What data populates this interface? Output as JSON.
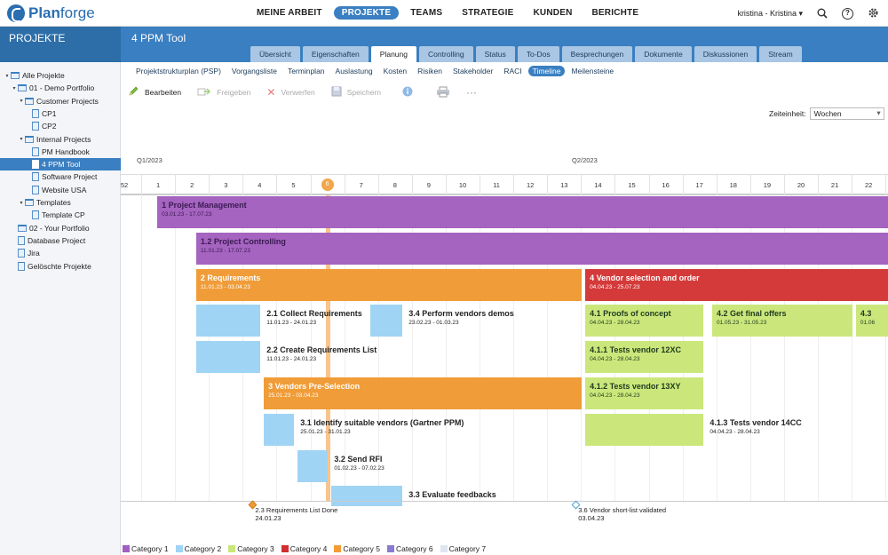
{
  "topnav": {
    "brand_a": "Plan",
    "brand_b": "forge",
    "items": [
      "MEINE ARBEIT",
      "PROJEKTE",
      "TEAMS",
      "STRATEGIE",
      "KUNDEN",
      "BERICHTE"
    ],
    "active": "PROJEKTE",
    "user": "kristina - Kristina",
    "help": "?"
  },
  "header": {
    "section": "PROJEKTE",
    "project_title": "4 PPM Tool",
    "tabs": [
      "Übersicht",
      "Eigenschaften",
      "Planung",
      "Controlling",
      "Status",
      "To-Dos",
      "Besprechungen",
      "Dokumente",
      "Diskussionen",
      "Stream"
    ],
    "active_tab": "Planung"
  },
  "subnav": {
    "items": [
      "Projektstrukturplan (PSP)",
      "Vorgangsliste",
      "Terminplan",
      "Auslastung",
      "Kosten",
      "Risiken",
      "Stakeholder",
      "RACI",
      "Timeline",
      "Meilensteine"
    ],
    "active": "Timeline"
  },
  "toolbar": {
    "edit": "Bearbeiten",
    "release": "Freigeben",
    "discard": "Verwerfen",
    "save": "Speichern"
  },
  "zeiteinheit": {
    "label": "Zeiteinheit:",
    "value": "Wochen"
  },
  "sidebar": {
    "items": [
      {
        "label": "Alle Projekte",
        "level": 0,
        "icon": "folder",
        "twisty": "▾"
      },
      {
        "label": "01 - Demo Portfolio",
        "level": 1,
        "icon": "folder",
        "twisty": "▾"
      },
      {
        "label": "Customer Projects",
        "level": 2,
        "icon": "folder",
        "twisty": "▾"
      },
      {
        "label": "CP1",
        "level": 3,
        "icon": "doc",
        "twisty": ""
      },
      {
        "label": "CP2",
        "level": 3,
        "icon": "doc",
        "twisty": ""
      },
      {
        "label": "Internal Projects",
        "level": 2,
        "icon": "folder",
        "twisty": "▾"
      },
      {
        "label": "PM Handbook",
        "level": 3,
        "icon": "doc",
        "twisty": ""
      },
      {
        "label": "4 PPM Tool",
        "level": 3,
        "icon": "doc",
        "twisty": "",
        "selected": true
      },
      {
        "label": "Software Project",
        "level": 3,
        "icon": "doc",
        "twisty": ""
      },
      {
        "label": "Website USA",
        "level": 3,
        "icon": "doc",
        "twisty": ""
      },
      {
        "label": "Templates",
        "level": 2,
        "icon": "folder",
        "twisty": "▾"
      },
      {
        "label": "Template CP",
        "level": 3,
        "icon": "doc",
        "twisty": ""
      },
      {
        "label": "02 - Your Portfolio",
        "level": 1,
        "icon": "folder",
        "twisty": ""
      },
      {
        "label": "Database Project",
        "level": 1,
        "icon": "doc",
        "twisty": ""
      },
      {
        "label": "Jira",
        "level": 1,
        "icon": "doc",
        "twisty": ""
      },
      {
        "label": "Gelöschte Projekte",
        "level": 1,
        "icon": "trash",
        "twisty": ""
      }
    ]
  },
  "timeline": {
    "quarters": [
      "Q1/2023",
      "Q2/2023"
    ],
    "weeks": [
      "52",
      "1",
      "2",
      "3",
      "4",
      "5",
      "6",
      "7",
      "8",
      "9",
      "10",
      "11",
      "12",
      "13",
      "14",
      "15",
      "16",
      "17",
      "18",
      "19",
      "20",
      "21",
      "22"
    ],
    "current_week": "6",
    "bars": [
      {
        "title": "1 Project Management",
        "dates": "03.01.23 - 17.07.23",
        "cat": 6,
        "w0": 1,
        "w1": 23.5,
        "row": 0,
        "label": "in"
      },
      {
        "title": "1.2 Project Controlling",
        "dates": "11.01.23 - 17.07.23",
        "cat": 6,
        "w0": 2.15,
        "w1": 23.5,
        "row": 1,
        "label": "in"
      },
      {
        "title": "2 Requirements",
        "dates": "11.01.23 - 03.04.23",
        "cat": 5,
        "w0": 2.15,
        "w1": 13.6,
        "row": 2,
        "label": "in"
      },
      {
        "title": "4 Vendor selection and order",
        "dates": "04.04.23 - 25.07.23",
        "cat": 4,
        "w0": 13.65,
        "w1": 23.5,
        "row": 2,
        "label": "in"
      },
      {
        "title": "2.1 Collect Requirements",
        "dates": "11.01.23 - 24.01.23",
        "cat": 2,
        "w0": 2.15,
        "w1": 4.1,
        "row": 3,
        "label": "out"
      },
      {
        "title": "3.4 Perform vendors demos",
        "dates": "23.02.23 - 01.03.23",
        "cat": 2,
        "w0": 7.3,
        "w1": 8.3,
        "row": 3,
        "label": "out"
      },
      {
        "title": "4.1 Proofs of concept",
        "dates": "04.04.23 - 28.04.23",
        "cat": 3,
        "w0": 13.65,
        "w1": 17.2,
        "row": 3,
        "label": "in"
      },
      {
        "title": "4.2 Get final offers",
        "dates": "01.05.23 - 31.05.23",
        "cat": 3,
        "w0": 17.4,
        "w1": 21.6,
        "row": 3,
        "label": "in"
      },
      {
        "title": "4.3",
        "dates": "01.06",
        "cat": 3,
        "w0": 21.65,
        "w1": 23.5,
        "row": 3,
        "label": "in"
      },
      {
        "title": "2.2 Create Requirements List",
        "dates": "11.01.23 - 24.01.23",
        "cat": 2,
        "w0": 2.15,
        "w1": 4.1,
        "row": 4,
        "label": "out"
      },
      {
        "title": "4.1.1 Tests vendor 12XC",
        "dates": "04.04.23 - 28.04.23",
        "cat": 3,
        "w0": 13.65,
        "w1": 17.2,
        "row": 4,
        "label": "in"
      },
      {
        "title": "3 Vendors Pre-Selection",
        "dates": "25.01.23 - 03.04.23",
        "cat": 5,
        "w0": 4.15,
        "w1": 13.6,
        "row": 5,
        "label": "in"
      },
      {
        "title": "4.1.2 Tests vendor 13XY",
        "dates": "04.04.23 - 28.04.23",
        "cat": 3,
        "w0": 13.65,
        "w1": 17.2,
        "row": 5,
        "label": "in"
      },
      {
        "title": "3.1 Identify suitable vendors (Gartner PPM)",
        "dates": "25.01.23 - 31.01.23",
        "cat": 2,
        "w0": 4.15,
        "w1": 5.1,
        "row": 6,
        "label": "out"
      },
      {
        "title": "4.1.3 Tests vendor 14CC",
        "dates": "04.04.23 - 28.04.23",
        "cat": 3,
        "w0": 13.65,
        "w1": 17.2,
        "row": 6,
        "label": "out"
      },
      {
        "title": "3.2 Send RFI",
        "dates": "01.02.23 - 07.02.23",
        "cat": 2,
        "w0": 5.15,
        "w1": 6.1,
        "row": 7,
        "label": "out"
      },
      {
        "title": "3.3 Evaluate feedbacks",
        "dates": "",
        "cat": 2,
        "w0": 6.15,
        "w1": 8.3,
        "row": 8,
        "label": "out"
      }
    ],
    "milestones": [
      {
        "title": "2.3 Requirements List Done",
        "date": "24.01.23",
        "cat": 5,
        "w": 4.0
      },
      {
        "title": "3.6 Vendor short-list validated",
        "date": "03.04.23",
        "cat": 2,
        "w": 13.55
      }
    ]
  },
  "legend": [
    {
      "label": "Category 1",
      "color": "#a15fc4"
    },
    {
      "label": "Category 2",
      "color": "#9fd4f5"
    },
    {
      "label": "Category 3",
      "color": "#cbe77b"
    },
    {
      "label": "Category 4",
      "color": "#d12f2f"
    },
    {
      "label": "Category 5",
      "color": "#f39b35"
    },
    {
      "label": "Category 6",
      "color": "#8b7ad1"
    },
    {
      "label": "Category 7",
      "color": "#dfe6ef"
    }
  ],
  "colors": {
    "cat2": "#9fd4f5",
    "cat3": "#cbe77b",
    "cat4": "#d43a3a",
    "cat5": "#f09c38",
    "cat6": "#a564c0",
    "accent": "#3a7fc1"
  }
}
